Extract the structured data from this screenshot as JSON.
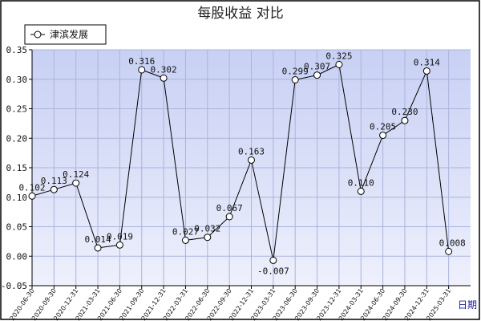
{
  "chart_data": {
    "type": "line",
    "title": "每股收益  对比",
    "xlabel": "日期",
    "ylabel": "",
    "ylim": [
      -0.05,
      0.35
    ],
    "yticks": [
      "-0.05",
      "0.00",
      "0.05",
      "0.10",
      "0.15",
      "0.20",
      "0.25",
      "0.30",
      "0.35"
    ],
    "grid": true,
    "legend_position": "top-left",
    "colors": {
      "plot_bg_top": "#c8d0f4",
      "plot_bg_bottom": "#eef0fc",
      "grid": "#aab4dc",
      "line": "#000000",
      "frame": "#000000"
    },
    "categories": [
      "2020-06-30",
      "2020-09-30",
      "2020-12-31",
      "2021-03-31",
      "2021-06-30",
      "2021-09-30",
      "2021-12-31",
      "2022-03-31",
      "2022-06-30",
      "2022-09-30",
      "2022-12-31",
      "2023-03-31",
      "2023-06-30",
      "2023-09-30",
      "2023-12-31",
      "2024-03-31",
      "2024-06-30",
      "2024-09-30",
      "2024-12-31",
      "2025-03-31"
    ],
    "series": [
      {
        "name": "津滨发展",
        "values": [
          0.102,
          0.113,
          0.124,
          0.014,
          0.019,
          0.316,
          0.302,
          0.027,
          0.032,
          0.067,
          0.163,
          -0.007,
          0.299,
          0.307,
          0.325,
          0.11,
          0.205,
          0.23,
          0.314,
          0.008
        ],
        "labels": [
          "0.102",
          "0.113",
          "0.124",
          "0.014",
          "0.019",
          "0.316",
          "0.302",
          "0.027",
          "0.032",
          "0.067",
          "0.163",
          "-0.007",
          "0.299",
          "0.307",
          "0.325",
          "0.110",
          "0.205",
          "0.230",
          "0.314",
          "0.008"
        ]
      }
    ]
  }
}
